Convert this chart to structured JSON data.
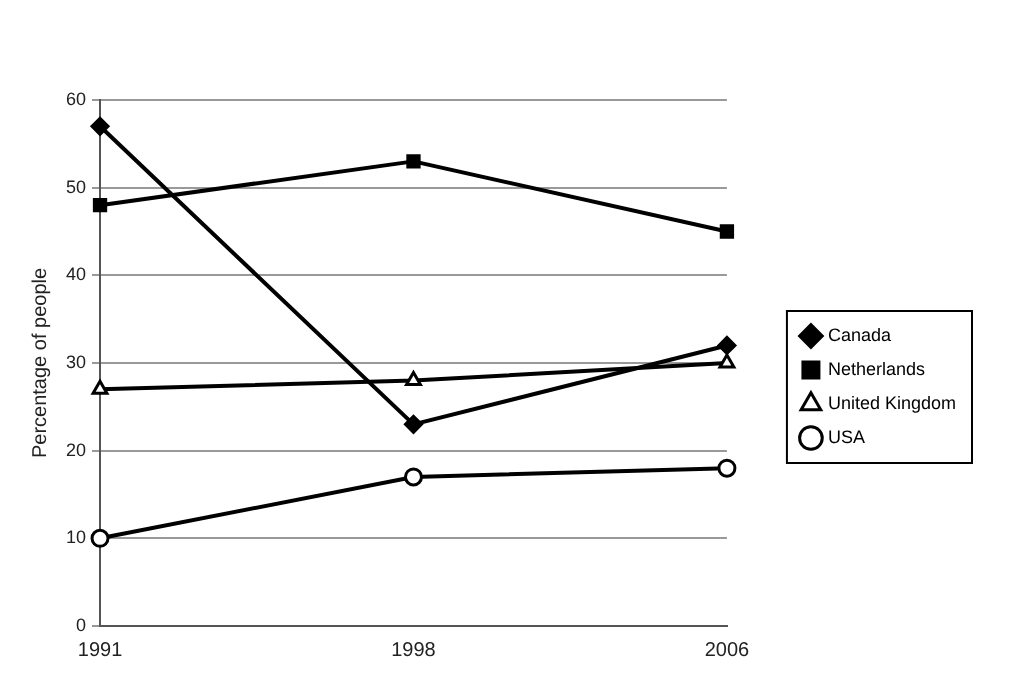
{
  "chart_data": {
    "type": "line",
    "ylabel": "Percentage of people",
    "categories": [
      "1991",
      "1998",
      "2006"
    ],
    "series": [
      {
        "name": "Canada",
        "color": "#000000",
        "marker": "diamond",
        "values": [
          57,
          23,
          32
        ]
      },
      {
        "name": "Netherlands",
        "color": "#000000",
        "marker": "square",
        "values": [
          48,
          53,
          45
        ]
      },
      {
        "name": "United Kingdom",
        "color": "#000000",
        "marker": "triangle",
        "values": [
          27,
          28,
          30
        ]
      },
      {
        "name": "USA",
        "color": "#000000",
        "marker": "circle",
        "values": [
          10,
          17,
          18
        ]
      }
    ],
    "ylim": [
      0,
      60
    ],
    "yticks": [
      0,
      10,
      20,
      30,
      40,
      50,
      60
    ],
    "grid": "y",
    "legend": "right",
    "line_style": "solid"
  }
}
